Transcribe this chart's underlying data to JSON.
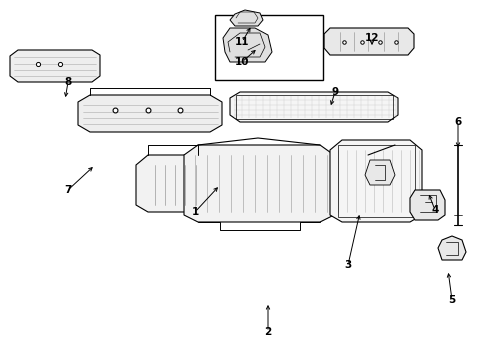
{
  "background_color": "#ffffff",
  "line_color": "#000000",
  "label_color": "#000000",
  "label_data": [
    [
      "1",
      195,
      148,
      220,
      175
    ],
    [
      "2",
      268,
      28,
      268,
      58
    ],
    [
      "3",
      348,
      95,
      360,
      148
    ],
    [
      "4",
      435,
      150,
      428,
      168
    ],
    [
      "5",
      452,
      60,
      448,
      90
    ],
    [
      "6",
      458,
      238,
      458,
      210
    ],
    [
      "7",
      68,
      170,
      95,
      195
    ],
    [
      "8",
      68,
      278,
      65,
      260
    ],
    [
      "9",
      335,
      268,
      330,
      252
    ],
    [
      "10",
      242,
      298,
      258,
      312
    ],
    [
      "11",
      242,
      318,
      252,
      335
    ],
    [
      "12",
      372,
      322,
      372,
      312
    ]
  ]
}
